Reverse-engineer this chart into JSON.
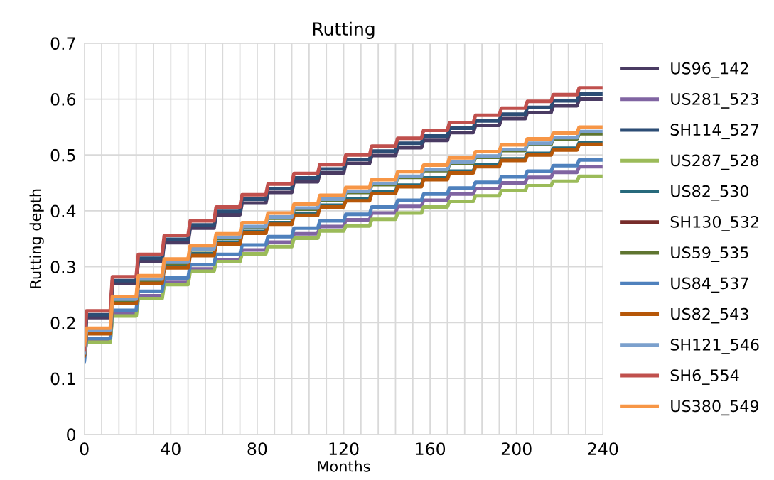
{
  "chart_data": {
    "type": "line",
    "title": "Rutting",
    "xlabel": "Months",
    "ylabel": "Rutting depth",
    "x": [
      0,
      1,
      12,
      13,
      24,
      25,
      36,
      37,
      48,
      49,
      60,
      61,
      72,
      73,
      84,
      85,
      96,
      97,
      108,
      109,
      120,
      121,
      132,
      133,
      144,
      145,
      156,
      157,
      168,
      169,
      180,
      181,
      192,
      193,
      204,
      205,
      216,
      217,
      228,
      229,
      240
    ],
    "xlim": [
      0,
      240
    ],
    "xticks": [
      0,
      {
        "value": 8,
        "label": null
      },
      {
        "value": 16,
        "label": null
      },
      {
        "value": 24,
        "label": null
      },
      {
        "value": 32,
        "label": null
      },
      40,
      {
        "value": 48,
        "label": null
      },
      {
        "value": 56,
        "label": null
      },
      {
        "value": 64,
        "label": null
      },
      {
        "value": 72,
        "label": null
      },
      80,
      {
        "value": 88,
        "label": null
      },
      {
        "value": 96,
        "label": null
      },
      {
        "value": 104,
        "label": null
      },
      {
        "value": 112,
        "label": null
      },
      120,
      {
        "value": 128,
        "label": null
      },
      {
        "value": 136,
        "label": null
      },
      {
        "value": 144,
        "label": null
      },
      {
        "value": 152,
        "label": null
      },
      160,
      {
        "value": 168,
        "label": null
      },
      {
        "value": 176,
        "label": null
      },
      {
        "value": 184,
        "label": null
      },
      {
        "value": 192,
        "label": null
      },
      200,
      {
        "value": 208,
        "label": null
      },
      {
        "value": 216,
        "label": null
      },
      {
        "value": 224,
        "label": null
      },
      {
        "value": 232,
        "label": null
      },
      240
    ],
    "ylim": [
      0,
      0.7
    ],
    "yticks": [
      0,
      0.1,
      0.2,
      0.3,
      0.4,
      0.5,
      0.6,
      0.7
    ],
    "grid": true,
    "legend": "right",
    "marker": "none",
    "line_style": "solid",
    "series": [
      {
        "name": "US96_142",
        "color": "#4a3b63",
        "values": [
          0.14,
          0.209,
          0.209,
          0.27,
          0.27,
          0.31,
          0.31,
          0.343,
          0.343,
          0.369,
          0.369,
          0.393,
          0.393,
          0.414,
          0.414,
          0.433,
          0.433,
          0.452,
          0.452,
          0.468,
          0.468,
          0.485,
          0.485,
          0.499,
          0.499,
          0.513,
          0.513,
          0.526,
          0.526,
          0.54,
          0.54,
          0.553,
          0.553,
          0.565,
          0.565,
          0.576,
          0.576,
          0.588,
          0.588,
          0.6,
          0.6
        ]
      },
      {
        "name": "US281_523",
        "color": "#8064a2",
        "values": [
          0.14,
          0.168,
          0.168,
          0.217,
          0.217,
          0.248,
          0.248,
          0.272,
          0.272,
          0.296,
          0.296,
          0.313,
          0.313,
          0.33,
          0.33,
          0.344,
          0.344,
          0.359,
          0.359,
          0.372,
          0.372,
          0.384,
          0.384,
          0.396,
          0.396,
          0.408,
          0.408,
          0.419,
          0.419,
          0.43,
          0.43,
          0.44,
          0.44,
          0.45,
          0.45,
          0.46,
          0.46,
          0.469,
          0.469,
          0.479,
          0.479
        ]
      },
      {
        "name": "SH114_527",
        "color": "#2c4d75",
        "values": [
          0.145,
          0.214,
          0.214,
          0.275,
          0.275,
          0.315,
          0.315,
          0.349,
          0.349,
          0.375,
          0.375,
          0.399,
          0.399,
          0.421,
          0.421,
          0.44,
          0.44,
          0.459,
          0.459,
          0.475,
          0.475,
          0.492,
          0.492,
          0.507,
          0.507,
          0.521,
          0.521,
          0.534,
          0.534,
          0.548,
          0.548,
          0.561,
          0.561,
          0.573,
          0.573,
          0.585,
          0.585,
          0.597,
          0.597,
          0.609,
          0.609
        ]
      },
      {
        "name": "US287_528",
        "color": "#9bbb59",
        "values": [
          0.14,
          0.165,
          0.165,
          0.212,
          0.212,
          0.243,
          0.243,
          0.268,
          0.268,
          0.292,
          0.292,
          0.309,
          0.309,
          0.323,
          0.323,
          0.336,
          0.336,
          0.351,
          0.351,
          0.364,
          0.364,
          0.373,
          0.373,
          0.385,
          0.385,
          0.396,
          0.396,
          0.407,
          0.407,
          0.417,
          0.417,
          0.427,
          0.427,
          0.436,
          0.436,
          0.445,
          0.445,
          0.453,
          0.453,
          0.462,
          0.462
        ]
      },
      {
        "name": "US82_530",
        "color": "#276a7c",
        "values": [
          0.14,
          0.183,
          0.183,
          0.237,
          0.237,
          0.273,
          0.273,
          0.301,
          0.301,
          0.323,
          0.323,
          0.344,
          0.344,
          0.363,
          0.363,
          0.379,
          0.379,
          0.395,
          0.395,
          0.41,
          0.41,
          0.421,
          0.421,
          0.434,
          0.434,
          0.446,
          0.446,
          0.459,
          0.459,
          0.471,
          0.471,
          0.482,
          0.482,
          0.493,
          0.493,
          0.503,
          0.503,
          0.512,
          0.512,
          0.522,
          0.522
        ]
      },
      {
        "name": "SH130_532",
        "color": "#772c2a",
        "values": [
          null,
          null,
          null,
          null,
          null,
          null,
          null,
          null,
          null,
          null,
          null,
          null,
          null,
          null,
          null,
          null,
          null,
          null,
          null,
          null,
          null,
          null,
          null,
          null,
          null,
          null,
          null,
          null,
          null,
          null,
          null,
          null,
          null,
          null,
          null,
          null,
          null,
          null,
          null,
          null,
          null
        ]
      },
      {
        "name": "US59_535",
        "color": "#5f7530",
        "values": [
          0.14,
          0.185,
          0.185,
          0.24,
          0.24,
          0.276,
          0.276,
          0.306,
          0.306,
          0.33,
          0.33,
          0.351,
          0.351,
          0.37,
          0.37,
          0.387,
          0.387,
          0.403,
          0.403,
          0.419,
          0.419,
          0.433,
          0.433,
          0.447,
          0.447,
          0.46,
          0.46,
          0.472,
          0.472,
          0.485,
          0.485,
          0.496,
          0.496,
          0.508,
          0.508,
          0.519,
          0.519,
          0.529,
          0.529,
          0.538,
          0.538
        ]
      },
      {
        "name": "US84_537",
        "color": "#4f81bd",
        "values": [
          0.13,
          0.172,
          0.172,
          0.222,
          0.222,
          0.256,
          0.256,
          0.28,
          0.28,
          0.304,
          0.304,
          0.322,
          0.322,
          0.339,
          0.339,
          0.354,
          0.354,
          0.369,
          0.369,
          0.382,
          0.382,
          0.394,
          0.394,
          0.407,
          0.407,
          0.419,
          0.419,
          0.43,
          0.43,
          0.441,
          0.441,
          0.451,
          0.451,
          0.461,
          0.461,
          0.471,
          0.471,
          0.481,
          0.481,
          0.491,
          0.491
        ]
      },
      {
        "name": "US82_543",
        "color": "#b65708",
        "values": [
          0.14,
          0.18,
          0.18,
          0.234,
          0.234,
          0.27,
          0.27,
          0.298,
          0.298,
          0.32,
          0.32,
          0.341,
          0.341,
          0.36,
          0.36,
          0.376,
          0.376,
          0.392,
          0.392,
          0.407,
          0.407,
          0.418,
          0.418,
          0.431,
          0.431,
          0.443,
          0.443,
          0.456,
          0.456,
          0.468,
          0.468,
          0.479,
          0.479,
          0.49,
          0.49,
          0.5,
          0.5,
          0.509,
          0.509,
          0.519,
          0.519
        ]
      },
      {
        "name": "SH121_546",
        "color": "#7ba0cd",
        "values": [
          0.145,
          0.187,
          0.187,
          0.242,
          0.242,
          0.278,
          0.278,
          0.308,
          0.308,
          0.332,
          0.332,
          0.353,
          0.353,
          0.372,
          0.372,
          0.389,
          0.389,
          0.405,
          0.405,
          0.421,
          0.421,
          0.435,
          0.435,
          0.449,
          0.449,
          0.462,
          0.462,
          0.474,
          0.474,
          0.487,
          0.487,
          0.498,
          0.498,
          0.51,
          0.51,
          0.521,
          0.521,
          0.531,
          0.531,
          0.542,
          0.542
        ]
      },
      {
        "name": "SH6_554",
        "color": "#c0504d",
        "values": [
          0.15,
          0.221,
          0.221,
          0.282,
          0.282,
          0.322,
          0.322,
          0.356,
          0.356,
          0.382,
          0.382,
          0.407,
          0.407,
          0.429,
          0.429,
          0.448,
          0.448,
          0.467,
          0.467,
          0.483,
          0.483,
          0.5,
          0.5,
          0.516,
          0.516,
          0.53,
          0.53,
          0.544,
          0.544,
          0.558,
          0.558,
          0.571,
          0.571,
          0.584,
          0.584,
          0.596,
          0.596,
          0.608,
          0.608,
          0.62,
          0.62
        ]
      },
      {
        "name": "US380_549",
        "color": "#f79646",
        "values": [
          0.16,
          0.19,
          0.19,
          0.247,
          0.247,
          0.284,
          0.284,
          0.314,
          0.314,
          0.338,
          0.338,
          0.359,
          0.359,
          0.379,
          0.379,
          0.396,
          0.396,
          0.412,
          0.412,
          0.428,
          0.428,
          0.442,
          0.442,
          0.456,
          0.456,
          0.47,
          0.47,
          0.482,
          0.482,
          0.495,
          0.495,
          0.506,
          0.506,
          0.518,
          0.518,
          0.529,
          0.529,
          0.539,
          0.539,
          0.55,
          0.55
        ]
      }
    ]
  }
}
